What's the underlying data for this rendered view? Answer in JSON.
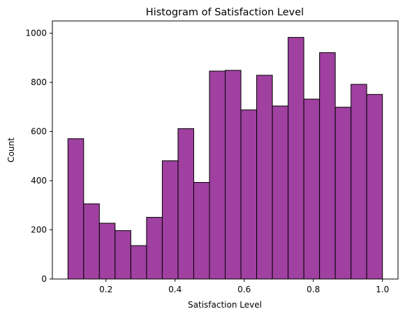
{
  "chart_data": {
    "type": "bar",
    "title": "Histogram of Satisfaction Level",
    "xlabel": "Satisfaction Level",
    "ylabel": "Count",
    "xlim": [
      0.045,
      1.045
    ],
    "ylim": [
      0,
      1050
    ],
    "xticks": [
      0.2,
      0.4,
      0.6,
      0.8,
      1.0
    ],
    "xtick_labels": [
      "0.2",
      "0.4",
      "0.6",
      "0.8",
      "1.0"
    ],
    "yticks": [
      0,
      200,
      400,
      600,
      800,
      1000
    ],
    "ytick_labels": [
      "0",
      "200",
      "400",
      "600",
      "800",
      "1000"
    ],
    "bin_edges": [
      0.09,
      0.1355,
      0.181,
      0.2265,
      0.272,
      0.3175,
      0.363,
      0.4085,
      0.454,
      0.4995,
      0.545,
      0.5905,
      0.636,
      0.6815,
      0.727,
      0.7725,
      0.818,
      0.8635,
      0.909,
      0.9545,
      1.0
    ],
    "values": [
      571,
      306,
      227,
      197,
      136,
      251,
      481,
      612,
      393,
      846,
      849,
      688,
      829,
      704,
      983,
      732,
      921,
      699,
      792,
      751
    ],
    "bar_color": "#a040a0",
    "edge_color": "#000000",
    "grid": false
  }
}
